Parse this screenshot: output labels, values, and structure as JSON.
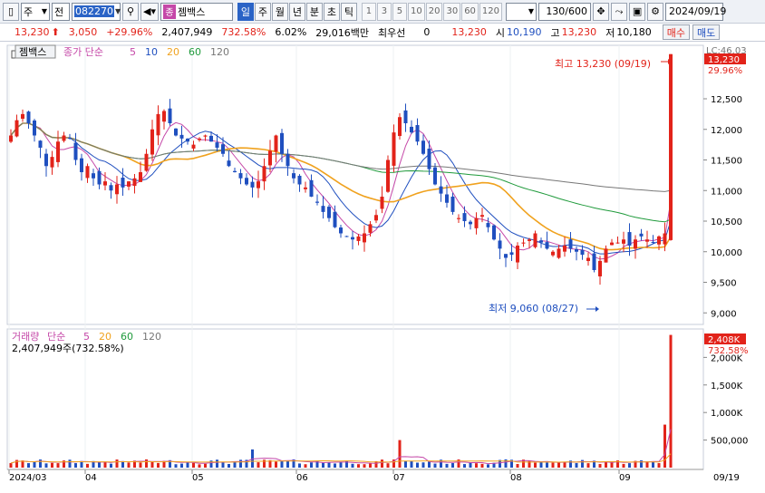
{
  "toolbar": {
    "market": "주",
    "type": "전",
    "code": "082270",
    "name": "젬백스",
    "badge": "종",
    "periods": [
      "일",
      "주",
      "월",
      "년",
      "분",
      "초",
      "틱"
    ],
    "active_period": "일",
    "numbers": [
      "1",
      "3",
      "5",
      "10",
      "20",
      "30",
      "60",
      "120"
    ],
    "count": "130/600",
    "date": "2024/09/19"
  },
  "infobar": {
    "price": "13,230",
    "change": "3,050",
    "change_pct": "+29.96%",
    "volume": "2,407,949",
    "volume_ratio": "732.58%",
    "turnover": "6.02%",
    "amount": "29,016백만",
    "priority_label": "최우선",
    "priority_value": "0",
    "ask": "13,230",
    "open_label": "시",
    "open": "10,190",
    "high_label": "고",
    "high": "13,230",
    "low_label": "저",
    "low": "10,180",
    "buy_btn": "매수",
    "sell_btn": "매도"
  },
  "price_chart": {
    "title": "젬백스",
    "legend_prefix": "종가 단순",
    "ma_labels": [
      "5",
      "10",
      "20",
      "60",
      "120"
    ],
    "ma_colors": [
      "#c548a8",
      "#1f4fbf",
      "#f0a21e",
      "#1f9a3b",
      "#777777"
    ],
    "high_annotation": "최고 13,230 (09/19)",
    "low_annotation": "최저 9,060 (08/27)",
    "price_tag": "13,230",
    "pct_tag": "29.96%",
    "lc_label": "LC:46.03",
    "y_ticks": [
      "12,500",
      "12,000",
      "11,500",
      "11,000",
      "10,500",
      "10,000",
      "9,500",
      "9,000"
    ]
  },
  "volume_chart": {
    "title": "거래량",
    "legend_prefix": "단순",
    "ma_labels": [
      "5",
      "20",
      "60",
      "120"
    ],
    "volume_text": "2,407,949주(732.58%)",
    "vol_tag": "2,408K",
    "vol_pct_tag": "732.58%",
    "y_ticks": [
      "2,000K",
      "1,500K",
      "1,000K",
      "500,000"
    ]
  },
  "x_axis": {
    "labels": [
      "2024/03",
      "04",
      "05",
      "06",
      "07",
      "08",
      "09"
    ],
    "right_label": "09/19"
  },
  "chart_data": {
    "type": "candlestick",
    "price_range": [
      8900,
      13300
    ],
    "volume_range": [
      0,
      2450000
    ],
    "candles_close": [
      11900,
      12150,
      12250,
      12100,
      11900,
      11700,
      11400,
      11550,
      11800,
      11900,
      11850,
      11500,
      11300,
      11400,
      11200,
      11100,
      11150,
      11000,
      11100,
      11050,
      11150,
      11200,
      11300,
      11600,
      12000,
      12250,
      12300,
      12100,
      11900,
      11850,
      11800,
      11750,
      11850,
      11900,
      11800,
      11700,
      11600,
      11400,
      11300,
      11200,
      11100,
      11050,
      11150,
      11400,
      11650,
      11900,
      11600,
      11400,
      11200,
      11100,
      11050,
      10900,
      10800,
      10650,
      10550,
      10400,
      10300,
      10250,
      10200,
      10250,
      10300,
      10450,
      10600,
      10900,
      11500,
      11950,
      12200,
      12100,
      11950,
      11800,
      11600,
      11350,
      11100,
      10950,
      10800,
      10650,
      10550,
      10500,
      10450,
      10550,
      10600,
      10400,
      10200,
      10050,
      9900,
      9950,
      10100,
      10150,
      10200,
      10300,
      10150,
      10050,
      10000,
      10050,
      10100,
      10050,
      10000,
      9950,
      9900,
      9700,
      9850,
      10050,
      10150,
      10150,
      10200,
      10100,
      10200,
      10250,
      10200,
      10150,
      10250,
      10300,
      13230
    ],
    "volume_markers": [
      {
        "x": "2024/05",
        "value": "ma"
      }
    ]
  }
}
